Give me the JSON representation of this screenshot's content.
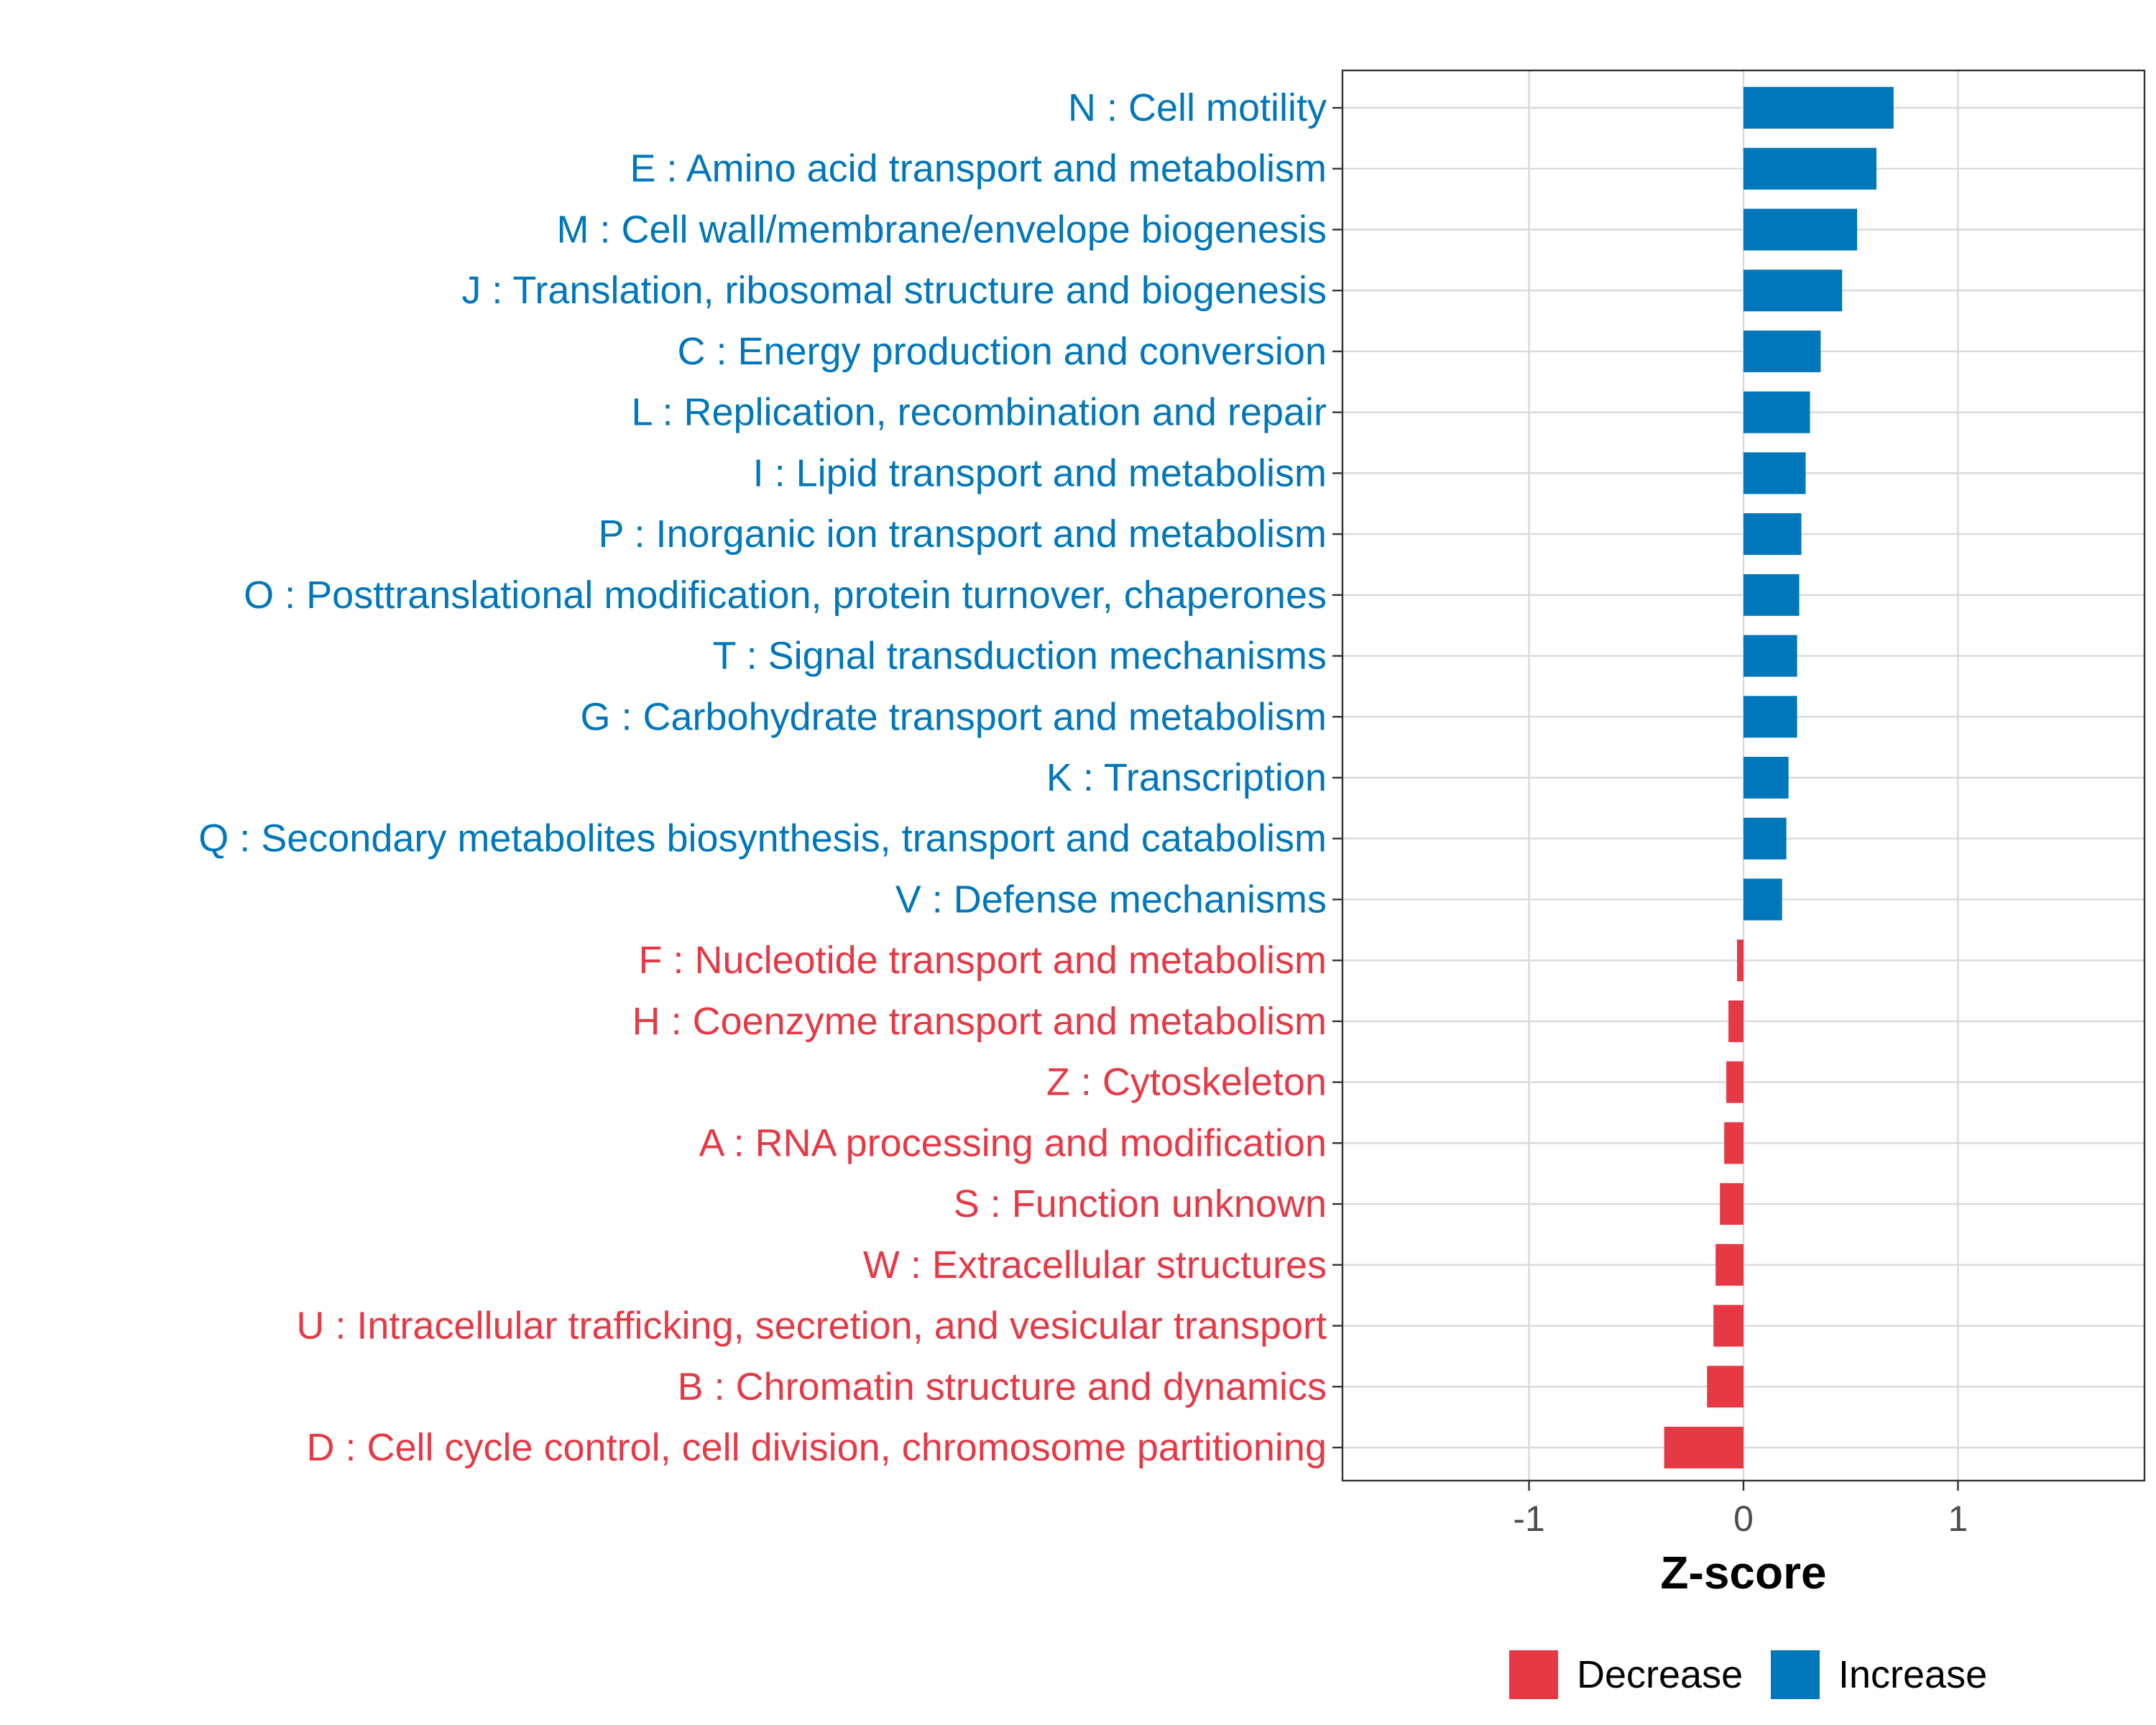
{
  "chart_data": {
    "type": "bar",
    "orientation": "horizontal",
    "xlabel": "Z-score",
    "xlim": [
      -1.87,
      1.87
    ],
    "xticks": [
      -1,
      0,
      1
    ],
    "xtick_labels": [
      "-1",
      "0",
      "1"
    ],
    "grid": true,
    "categories": [
      "N : Cell motility",
      "E : Amino acid transport and metabolism",
      "M : Cell wall/membrane/envelope biogenesis",
      "J : Translation, ribosomal structure and biogenesis",
      "C : Energy production and conversion",
      "L : Replication, recombination and repair",
      "I : Lipid transport and metabolism",
      "P : Inorganic ion transport and metabolism",
      "O : Posttranslational modification, protein turnover, chaperones",
      "T : Signal transduction mechanisms",
      "G : Carbohydrate transport and metabolism",
      "K : Transcription",
      "Q : Secondary metabolites biosynthesis, transport and catabolism",
      "V : Defense mechanisms",
      "F : Nucleotide transport and metabolism",
      "H : Coenzyme transport and metabolism",
      "Z : Cytoskeleton",
      "A : RNA processing and modification",
      "S : Function unknown",
      "W : Extracellular structures",
      "U : Intracellular trafficking, secretion, and vesicular transport",
      "B : Chromatin structure and dynamics",
      "D : Cell cycle control, cell division, chromosome partitioning"
    ],
    "values": [
      0.7,
      0.62,
      0.53,
      0.46,
      0.36,
      0.31,
      0.29,
      0.27,
      0.26,
      0.25,
      0.25,
      0.21,
      0.2,
      0.18,
      -0.03,
      -0.07,
      -0.08,
      -0.09,
      -0.11,
      -0.13,
      -0.14,
      -0.17,
      -0.37
    ],
    "groups": [
      "Increase",
      "Increase",
      "Increase",
      "Increase",
      "Increase",
      "Increase",
      "Increase",
      "Increase",
      "Increase",
      "Increase",
      "Increase",
      "Increase",
      "Increase",
      "Increase",
      "Decrease",
      "Decrease",
      "Decrease",
      "Decrease",
      "Decrease",
      "Decrease",
      "Decrease",
      "Decrease",
      "Decrease"
    ],
    "colors": {
      "Increase": "#0077BB",
      "Decrease": "#E63946"
    },
    "legend": {
      "position": "bottom",
      "entries": [
        {
          "label": "Decrease",
          "color": "#E63946"
        },
        {
          "label": "Increase",
          "color": "#0077BB"
        }
      ]
    }
  }
}
